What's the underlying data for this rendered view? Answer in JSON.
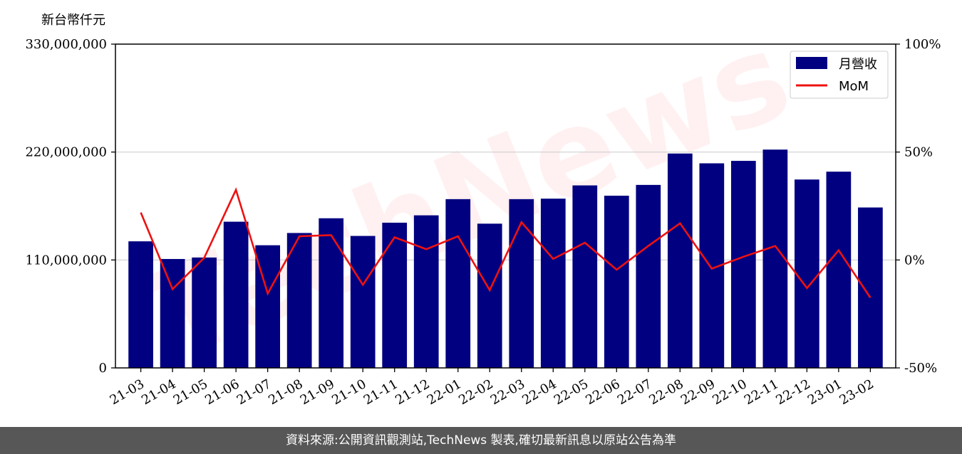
{
  "footer": {
    "source_text": "資料來源:公開資訊觀測站,TechNews 製表,確切最新訊息以原站公告為準"
  },
  "watermark": {
    "text": "TechNews"
  },
  "colors": {
    "bar": "#000080",
    "line": "#ee1111",
    "grid": "#d0d0d0"
  },
  "chart_data": {
    "type": "bar",
    "ylabel": "新台幣仟元",
    "ylim": [
      0,
      330000000
    ],
    "y_ticks": [
      "0",
      "110,000,000",
      "220,000,000",
      "330,000,000"
    ],
    "y2lim": [
      -50,
      100
    ],
    "y2_ticks": [
      "-50%",
      "0%",
      "50%",
      "100%"
    ],
    "grid": "horizontal",
    "legend_position": "top-right",
    "categories": [
      "21-03",
      "21-04",
      "21-05",
      "21-06",
      "21-07",
      "21-08",
      "21-09",
      "21-10",
      "21-11",
      "21-12",
      "22-01",
      "22-02",
      "22-03",
      "22-04",
      "22-05",
      "22-06",
      "22-07",
      "22-08",
      "22-09",
      "22-10",
      "22-11",
      "22-12",
      "23-01",
      "23-02"
    ],
    "series": [
      {
        "name": "月營收",
        "type": "bar",
        "axis": "left",
        "values": [
          129000000,
          111000000,
          112500000,
          149000000,
          125000000,
          137500000,
          152500000,
          134500000,
          148000000,
          155500000,
          172000000,
          147000000,
          172000000,
          172500000,
          186000000,
          175500000,
          186500000,
          218500000,
          208500000,
          211000000,
          222500000,
          192000000,
          200000000,
          163500000
        ]
      },
      {
        "name": "MoM",
        "type": "line",
        "axis": "right",
        "values": [
          22,
          -13.5,
          1,
          32.5,
          -15.5,
          11,
          11.5,
          -11.5,
          10.5,
          5,
          11,
          -14,
          17.5,
          0.5,
          8,
          -4.5,
          6.5,
          17,
          -4,
          1.5,
          6.5,
          -13,
          4.5,
          -17.5
        ]
      }
    ]
  }
}
